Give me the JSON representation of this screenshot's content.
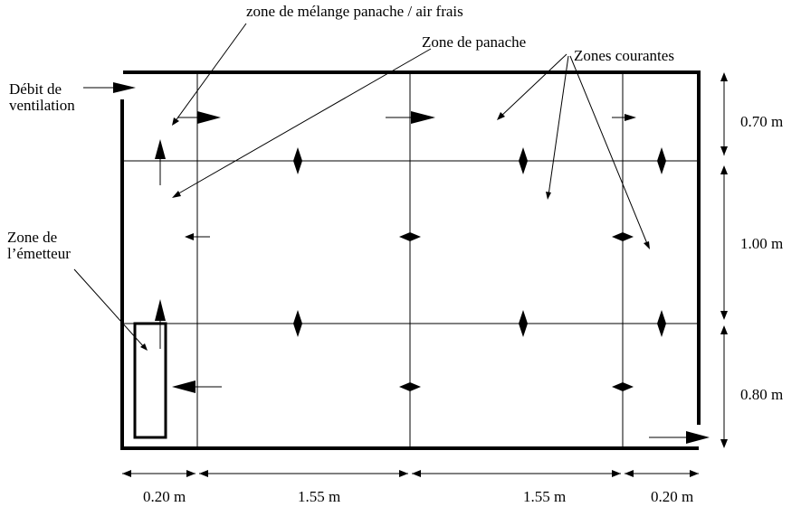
{
  "labels": {
    "mixing_zone": "zone de mélange panache / air frais",
    "plume_zone": "Zone de panache",
    "current_zones": "Zones courantes",
    "ventilation_line1": "Débit de",
    "ventilation_line2": "ventilation",
    "emitter_line1": "Zone de",
    "emitter_line2": "l’émetteur"
  },
  "dimensions": {
    "heights": [
      "0.70 m",
      "1.00 m",
      "0.80 m"
    ],
    "widths": [
      "0.20 m",
      "1.55 m",
      "1.55 m",
      "0.20 m"
    ]
  }
}
